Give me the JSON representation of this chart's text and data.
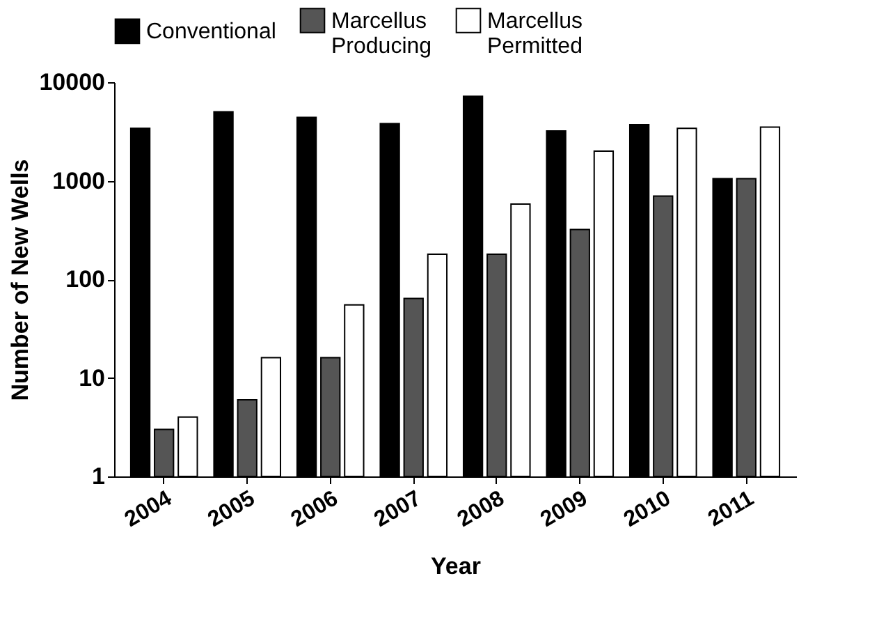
{
  "chart_data": {
    "type": "bar",
    "xlabel": "Year",
    "ylabel": "Number of New Wells",
    "categories": [
      "2004",
      "2005",
      "2006",
      "2007",
      "2008",
      "2009",
      "2010",
      "2011"
    ],
    "series": [
      {
        "name": "Conventional",
        "color": "#000000",
        "values": [
          3400,
          5000,
          4400,
          3800,
          7200,
          3200,
          3700,
          1050
        ]
      },
      {
        "name": "Marcellus Producing",
        "color": "#555555",
        "values": [
          3,
          6,
          16,
          64,
          180,
          320,
          700,
          1050
        ]
      },
      {
        "name": "Marcellus Permitted",
        "color": "#ffffff",
        "values": [
          4,
          16,
          55,
          180,
          580,
          2000,
          3400,
          3500
        ]
      }
    ],
    "log": true,
    "ylim": [
      1,
      10000
    ],
    "yticks": [
      1,
      10,
      100,
      1000,
      10000
    ],
    "grid": false,
    "legend": "top"
  }
}
